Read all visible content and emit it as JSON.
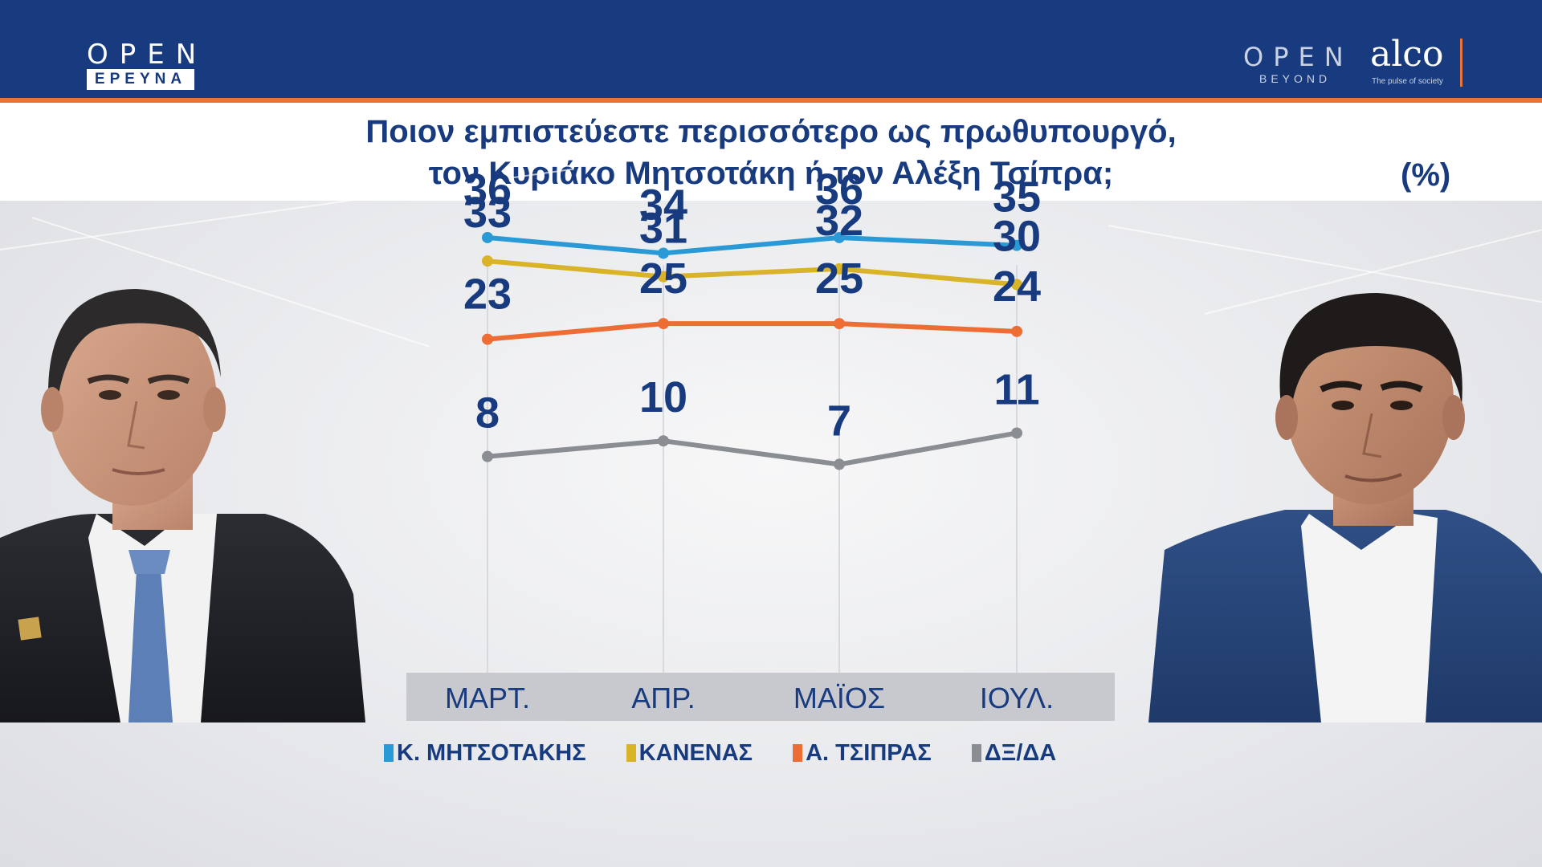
{
  "header": {
    "logo_open": "OPEN",
    "logo_erevna": "ΕΡΕΥΝΑ",
    "logo_beyond_open": "OPEN",
    "logo_beyond": "BEYOND",
    "logo_alco": "alco",
    "logo_alco_tagline": "The pulse of society"
  },
  "colors": {
    "brand_blue": "#173b7e",
    "accent_orange": "#e8743a"
  },
  "chart_data": {
    "type": "line",
    "title": "Ποιον εμπιστεύεστε περισσότερο ως πρωθυπουργό, τον Κυριάκο Μητσοτάκη ή τον Αλέξη Τσίπρα;",
    "title_lines": [
      "Ποιον εμπιστεύεστε περισσότερο ως πρωθυπουργό,",
      "τον Κυριάκο Μητσοτάκη ή τον Αλέξη Τσίπρα;"
    ],
    "unit_label": "(%)",
    "categories": [
      "ΜΑΡΤ.",
      "ΑΠΡ.",
      "ΜΑΪΟΣ",
      "ΙΟΥΛ."
    ],
    "series": [
      {
        "name": "Κ. ΜΗΤΣΟΤΑΚΗΣ",
        "color": "#2a9ad6",
        "values": [
          36,
          34,
          36,
          35
        ]
      },
      {
        "name": "ΚΑΝΕΝΑΣ",
        "color": "#d9b429",
        "values": [
          33,
          31,
          32,
          30
        ]
      },
      {
        "name": "Α. ΤΣΙΠΡΑΣ",
        "color": "#ee6d35",
        "values": [
          23,
          25,
          25,
          24
        ]
      },
      {
        "name": "ΔΞ/ΔΑ",
        "color": "#8a8d91",
        "values": [
          8,
          10,
          7,
          11
        ]
      }
    ],
    "legend_position": "bottom",
    "grid": "vertical",
    "data_labels": true
  }
}
